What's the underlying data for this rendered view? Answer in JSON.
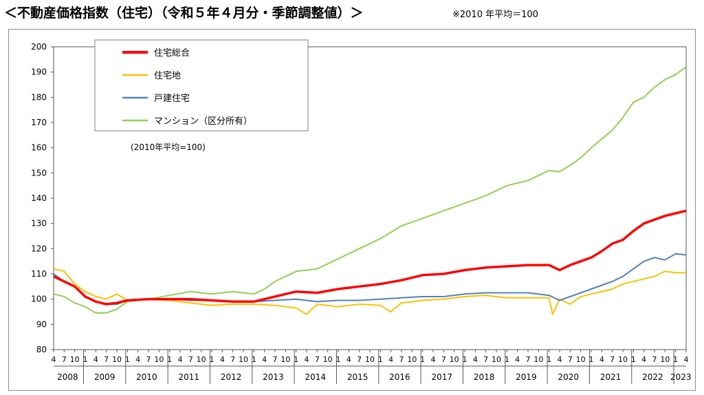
{
  "header": {
    "title": "＜不動産価格指数（住宅）（令和５年４月分・季節調整値）＞",
    "note": "※2010 年平均＝100"
  },
  "chart_data": {
    "type": "line",
    "annotation": "(2010年平均=100)",
    "ylim": [
      80,
      200
    ],
    "yticks": [
      "200",
      "190",
      "180",
      "170",
      "160",
      "150",
      "140",
      "130",
      "120",
      "110",
      "100",
      "90",
      "80"
    ],
    "month_labels": [
      "1",
      "4",
      "7",
      "10"
    ],
    "years": [
      "2008",
      "2009",
      "2010",
      "2011",
      "2012",
      "2013",
      "2014",
      "2015",
      "2016",
      "2017",
      "2018",
      "2019",
      "2020",
      "2021",
      "2022",
      "2023"
    ],
    "x_range": [
      "2008-04",
      "2023-04"
    ],
    "grid": false,
    "legend_position": "top-left",
    "series": [
      {
        "name": "住宅総合",
        "color": "#ff0000",
        "width": 3.5,
        "points": [
          [
            "2008-04",
            109
          ],
          [
            "2008-07",
            107
          ],
          [
            "2008-10",
            105
          ],
          [
            "2009-01",
            101
          ],
          [
            "2009-04",
            99
          ],
          [
            "2009-07",
            98
          ],
          [
            "2009-10",
            98.5
          ],
          [
            "2010-01",
            99.5
          ],
          [
            "2010-07",
            100
          ],
          [
            "2011-01",
            100
          ],
          [
            "2011-07",
            100
          ],
          [
            "2012-01",
            99.5
          ],
          [
            "2012-07",
            99
          ],
          [
            "2013-01",
            99
          ],
          [
            "2013-04",
            100
          ],
          [
            "2013-07",
            101
          ],
          [
            "2013-10",
            102
          ],
          [
            "2014-01",
            103
          ],
          [
            "2014-07",
            102.5
          ],
          [
            "2015-01",
            104
          ],
          [
            "2015-07",
            105
          ],
          [
            "2016-01",
            106
          ],
          [
            "2016-07",
            107.5
          ],
          [
            "2017-01",
            109.5
          ],
          [
            "2017-07",
            110
          ],
          [
            "2018-01",
            111.5
          ],
          [
            "2018-07",
            112.5
          ],
          [
            "2019-01",
            113
          ],
          [
            "2019-07",
            113.5
          ],
          [
            "2020-01",
            113.5
          ],
          [
            "2020-04",
            111.5
          ],
          [
            "2020-07",
            113.5
          ],
          [
            "2020-10",
            115
          ],
          [
            "2021-01",
            116.5
          ],
          [
            "2021-04",
            119
          ],
          [
            "2021-07",
            122
          ],
          [
            "2021-10",
            123.5
          ],
          [
            "2022-01",
            127
          ],
          [
            "2022-04",
            130
          ],
          [
            "2022-07",
            131.5
          ],
          [
            "2022-10",
            133
          ],
          [
            "2023-01",
            134
          ],
          [
            "2023-04",
            135
          ]
        ]
      },
      {
        "name": "住宅地",
        "color": "#ffc000",
        "width": 2,
        "points": [
          [
            "2008-04",
            112
          ],
          [
            "2008-07",
            111
          ],
          [
            "2008-10",
            106
          ],
          [
            "2009-01",
            103
          ],
          [
            "2009-04",
            101
          ],
          [
            "2009-07",
            100
          ],
          [
            "2009-10",
            102
          ],
          [
            "2010-01",
            99.5
          ],
          [
            "2010-07",
            100
          ],
          [
            "2011-01",
            99.5
          ],
          [
            "2011-07",
            98.5
          ],
          [
            "2012-01",
            97.5
          ],
          [
            "2012-07",
            98
          ],
          [
            "2013-01",
            98
          ],
          [
            "2013-07",
            97.5
          ],
          [
            "2014-01",
            96.5
          ],
          [
            "2014-04",
            94
          ],
          [
            "2014-07",
            98
          ],
          [
            "2015-01",
            97
          ],
          [
            "2015-07",
            98
          ],
          [
            "2016-01",
            97.5
          ],
          [
            "2016-04",
            95
          ],
          [
            "2016-07",
            98.5
          ],
          [
            "2017-01",
            99.5
          ],
          [
            "2017-07",
            100
          ],
          [
            "2018-01",
            101
          ],
          [
            "2018-07",
            101.5
          ],
          [
            "2019-01",
            100.5
          ],
          [
            "2019-07",
            100.5
          ],
          [
            "2020-01",
            100.5
          ],
          [
            "2020-02",
            94
          ],
          [
            "2020-04",
            100
          ],
          [
            "2020-07",
            98
          ],
          [
            "2020-10",
            101
          ],
          [
            "2021-01",
            102
          ],
          [
            "2021-07",
            104
          ],
          [
            "2021-10",
            106
          ],
          [
            "2022-01",
            107
          ],
          [
            "2022-07",
            109
          ],
          [
            "2022-10",
            111
          ],
          [
            "2023-01",
            110.5
          ],
          [
            "2023-04",
            110.5
          ]
        ]
      },
      {
        "name": "戸建住宅",
        "color": "#4f81bd",
        "width": 2,
        "points": [
          [
            "2008-04",
            110
          ],
          [
            "2008-07",
            107
          ],
          [
            "2008-10",
            105
          ],
          [
            "2009-01",
            101
          ],
          [
            "2009-04",
            99
          ],
          [
            "2009-07",
            98
          ],
          [
            "2009-10",
            98
          ],
          [
            "2010-01",
            99.5
          ],
          [
            "2010-07",
            100
          ],
          [
            "2011-01",
            100
          ],
          [
            "2011-07",
            99.5
          ],
          [
            "2012-01",
            99.5
          ],
          [
            "2012-07",
            99
          ],
          [
            "2013-01",
            99
          ],
          [
            "2013-07",
            99.5
          ],
          [
            "2014-01",
            100
          ],
          [
            "2014-07",
            99
          ],
          [
            "2015-01",
            99.5
          ],
          [
            "2015-07",
            99.5
          ],
          [
            "2016-01",
            100
          ],
          [
            "2016-07",
            100.5
          ],
          [
            "2017-01",
            101
          ],
          [
            "2017-07",
            101
          ],
          [
            "2018-01",
            102
          ],
          [
            "2018-07",
            102.5
          ],
          [
            "2019-01",
            102.5
          ],
          [
            "2019-07",
            102.5
          ],
          [
            "2020-01",
            101.5
          ],
          [
            "2020-04",
            99.5
          ],
          [
            "2020-07",
            101
          ],
          [
            "2020-10",
            102.5
          ],
          [
            "2021-01",
            104
          ],
          [
            "2021-07",
            107
          ],
          [
            "2021-10",
            109
          ],
          [
            "2022-01",
            112
          ],
          [
            "2022-04",
            115
          ],
          [
            "2022-07",
            116.5
          ],
          [
            "2022-10",
            115.5
          ],
          [
            "2023-01",
            118
          ],
          [
            "2023-04",
            117.5
          ]
        ]
      },
      {
        "name": "マンション（区分所有）",
        "color": "#92d050",
        "width": 2,
        "points": [
          [
            "2008-04",
            102
          ],
          [
            "2008-07",
            101
          ],
          [
            "2008-10",
            98.5
          ],
          [
            "2009-01",
            97
          ],
          [
            "2009-04",
            94.5
          ],
          [
            "2009-07",
            94.5
          ],
          [
            "2009-10",
            96
          ],
          [
            "2010-01",
            99
          ],
          [
            "2010-07",
            100
          ],
          [
            "2011-01",
            101.5
          ],
          [
            "2011-07",
            103
          ],
          [
            "2012-01",
            102
          ],
          [
            "2012-07",
            103
          ],
          [
            "2013-01",
            102
          ],
          [
            "2013-04",
            104
          ],
          [
            "2013-07",
            107
          ],
          [
            "2013-10",
            109
          ],
          [
            "2014-01",
            111
          ],
          [
            "2014-07",
            112
          ],
          [
            "2015-01",
            116
          ],
          [
            "2015-07",
            120
          ],
          [
            "2016-01",
            124
          ],
          [
            "2016-07",
            129
          ],
          [
            "2017-01",
            132
          ],
          [
            "2017-07",
            135
          ],
          [
            "2018-01",
            138
          ],
          [
            "2018-07",
            141
          ],
          [
            "2019-01",
            145
          ],
          [
            "2019-07",
            147
          ],
          [
            "2020-01",
            151
          ],
          [
            "2020-04",
            150.5
          ],
          [
            "2020-07",
            153
          ],
          [
            "2020-10",
            156
          ],
          [
            "2021-01",
            160
          ],
          [
            "2021-07",
            167
          ],
          [
            "2021-10",
            172
          ],
          [
            "2022-01",
            178
          ],
          [
            "2022-04",
            180
          ],
          [
            "2022-07",
            184
          ],
          [
            "2022-10",
            187
          ],
          [
            "2023-01",
            189
          ],
          [
            "2023-04",
            192
          ]
        ]
      }
    ]
  }
}
